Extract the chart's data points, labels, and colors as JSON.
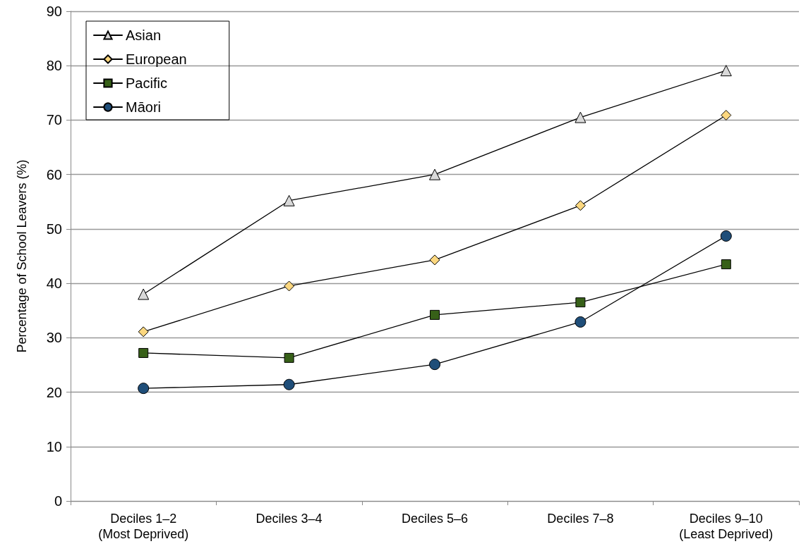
{
  "chart_data": {
    "type": "line",
    "ylabel": "Percentage of School Leavers (%)",
    "categories": [
      "Deciles 1–2\n(Most Deprived)",
      "Deciles 3–4",
      "Deciles 5–6",
      "Deciles 7–8",
      "Deciles 9–10\n(Least Deprived)"
    ],
    "series": [
      {
        "name": "Asian",
        "color": "#d9d9d9",
        "marker": "triangle",
        "values": [
          38,
          55.2,
          60,
          70.5,
          79.1
        ]
      },
      {
        "name": "European",
        "color": "#fcd77f",
        "marker": "diamond",
        "values": [
          31.1,
          39.5,
          44.3,
          54.3,
          70.9
        ]
      },
      {
        "name": "Pacific",
        "color": "#376018",
        "marker": "square",
        "values": [
          27.2,
          26.3,
          34.2,
          36.5,
          43.5
        ]
      },
      {
        "name": "Māori",
        "color": "#1f4e79",
        "marker": "circle",
        "values": [
          20.7,
          21.4,
          25.1,
          32.9,
          48.7
        ]
      }
    ],
    "ylim": [
      0,
      90
    ],
    "yticks": [
      0,
      10,
      20,
      30,
      40,
      50,
      60,
      70,
      80,
      90
    ],
    "grid": "y",
    "legend": "top left",
    "line_style": "solid"
  }
}
